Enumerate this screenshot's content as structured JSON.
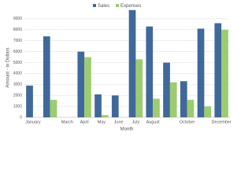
{
  "chart_data": {
    "type": "bar",
    "x_label": "Month",
    "y_label": "Amount - in Dollars",
    "categories": [
      "January",
      null,
      "March",
      "April",
      "May",
      "June",
      "July",
      "August",
      null,
      "October",
      null,
      "December"
    ],
    "series": [
      {
        "name": "Sales",
        "color": "#40689a",
        "values": [
          2900,
          7400,
          0,
          6000,
          2100,
          2000,
          9800,
          8300,
          5000,
          3300,
          8100,
          8600
        ]
      },
      {
        "name": "Expenses",
        "color": "#9dcb6f",
        "values": [
          0,
          1600,
          0,
          5500,
          200,
          0,
          5300,
          1700,
          3200,
          1600,
          1000,
          8000
        ]
      }
    ],
    "ylim": [
      0,
      10000
    ],
    "yticks": [
      0,
      1000,
      2000,
      3000,
      4000,
      5000,
      6000,
      7000,
      8000,
      9000
    ],
    "grid": true
  }
}
